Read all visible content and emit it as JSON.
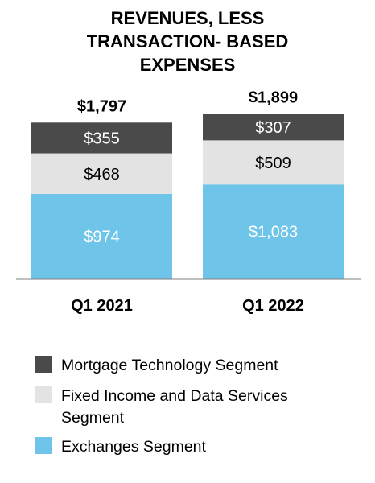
{
  "chart_data": {
    "type": "bar",
    "stacked": true,
    "title": [
      "REVENUES, LESS",
      "TRANSACTION- BASED",
      "EXPENSES"
    ],
    "categories": [
      "Q1 2021",
      "Q1 2022"
    ],
    "totals": [
      "$1,797",
      "$1,899"
    ],
    "series": [
      {
        "name": "Exchanges Segment",
        "values": [
          974,
          1083
        ],
        "labels": [
          "$974",
          "$1,083"
        ],
        "color": "#6ec5e9",
        "label_color": "#ffffff"
      },
      {
        "name": "Fixed Income and Data Services Segment",
        "values": [
          468,
          509
        ],
        "labels": [
          "$468",
          "$509"
        ],
        "color": "#e3e3e3",
        "label_color": "#000000"
      },
      {
        "name": "Mortgage Technology Segment",
        "values": [
          355,
          307
        ],
        "labels": [
          "$355",
          "$307"
        ],
        "color": "#4a4a4a",
        "label_color": "#ffffff"
      }
    ],
    "legend": {
      "placement": "bottom-left",
      "items": [
        {
          "label": [
            "Mortgage Technology Segment"
          ],
          "color": "#4a4a4a"
        },
        {
          "label": [
            "Fixed Income and Data Services",
            "Segment"
          ],
          "color": "#e3e3e3"
        },
        {
          "label": [
            "Exchanges Segment"
          ],
          "color": "#6ec5e9"
        }
      ]
    },
    "grid": false
  }
}
